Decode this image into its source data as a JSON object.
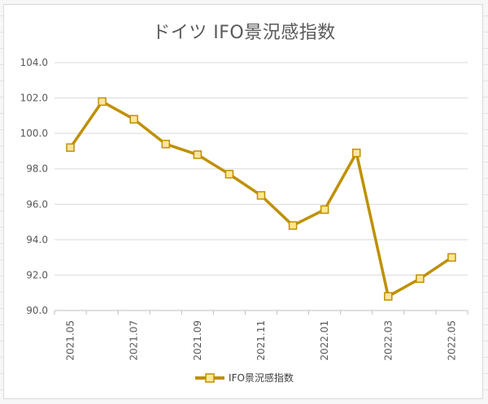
{
  "chart_data": {
    "type": "line",
    "title": "ドイツ IFO景況感指数",
    "xlabel": "",
    "ylabel": "",
    "x": [
      "2021.05",
      "2021.06",
      "2021.07",
      "2021.08",
      "2021.09",
      "2021.10",
      "2021.11",
      "2021.12",
      "2022.01",
      "2022.02",
      "2022.03",
      "2022.04",
      "2022.05"
    ],
    "tick_labels": [
      "2021.05",
      "2021.07",
      "2021.09",
      "2021.11",
      "2022.01",
      "2022.03",
      "2022.05"
    ],
    "series": [
      {
        "name": "IFO景況感指数",
        "values": [
          99.2,
          101.8,
          100.8,
          99.4,
          98.8,
          97.7,
          96.5,
          94.8,
          95.7,
          98.9,
          90.8,
          91.8,
          93.0
        ]
      }
    ],
    "ylim": [
      90.0,
      104.0
    ],
    "y_ticks": [
      "90.0",
      "92.0",
      "94.0",
      "96.0",
      "98.0",
      "100.0",
      "102.0",
      "104.0"
    ],
    "grid": true,
    "legend_position": "bottom",
    "colors": {
      "line": "#bf9000",
      "marker_fill": "#ffe699",
      "marker_stroke": "#bf9000",
      "grid": "#d9d9d9",
      "axis_text": "#595959"
    }
  }
}
